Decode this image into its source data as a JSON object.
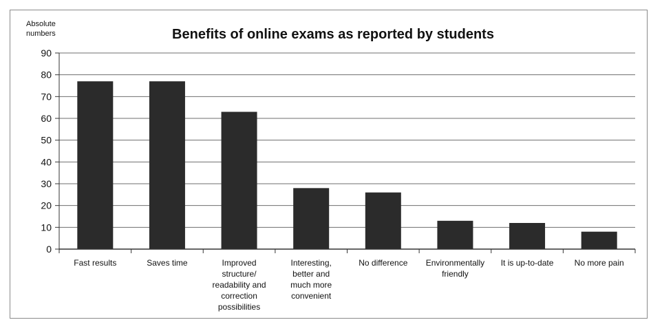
{
  "chart_data": {
    "type": "bar",
    "title": "Benefits of online exams as reported by students",
    "ylabel": [
      "Absolute",
      "numbers"
    ],
    "xlabel": "",
    "ylim": [
      0,
      90
    ],
    "yticks": [
      0,
      10,
      20,
      30,
      40,
      50,
      60,
      70,
      80,
      90
    ],
    "grid": true,
    "categories": [
      [
        "Fast results"
      ],
      [
        "Saves time"
      ],
      [
        "Improved",
        "structure/",
        "readability and",
        "correction",
        "possibilities"
      ],
      [
        "Interesting,",
        "better and",
        "much more",
        "convenient"
      ],
      [
        "No difference"
      ],
      [
        "Environmentally",
        "friendly"
      ],
      [
        "It is up-to-date"
      ],
      [
        "No more pain"
      ]
    ],
    "values": [
      77,
      77,
      63,
      28,
      26,
      13,
      12,
      8
    ],
    "bar_color": "#2b2b2b"
  }
}
